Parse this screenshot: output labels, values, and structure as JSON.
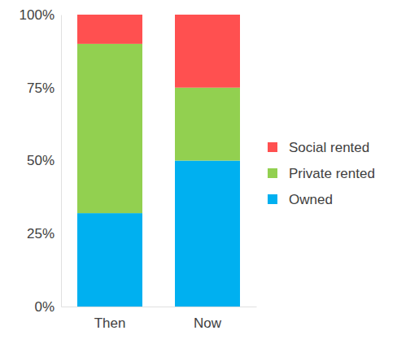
{
  "chart_data": {
    "type": "bar",
    "stacked": true,
    "legend": "right",
    "categories": [
      "Then",
      "Now"
    ],
    "series": [
      {
        "name": "Owned",
        "color": "#00b0f0",
        "values": [
          32,
          50
        ]
      },
      {
        "name": "Private rented",
        "color": "#92d050",
        "values": [
          58,
          25
        ]
      },
      {
        "name": "Social rented",
        "color": "#ff5050",
        "values": [
          10,
          25
        ]
      }
    ],
    "ylim": [
      0,
      100
    ],
    "yticks": [
      {
        "value": 0,
        "label": "0%"
      },
      {
        "value": 25,
        "label": "25%"
      },
      {
        "value": 50,
        "label": "50%"
      },
      {
        "value": 75,
        "label": "75%"
      },
      {
        "value": 100,
        "label": "100%"
      }
    ]
  }
}
